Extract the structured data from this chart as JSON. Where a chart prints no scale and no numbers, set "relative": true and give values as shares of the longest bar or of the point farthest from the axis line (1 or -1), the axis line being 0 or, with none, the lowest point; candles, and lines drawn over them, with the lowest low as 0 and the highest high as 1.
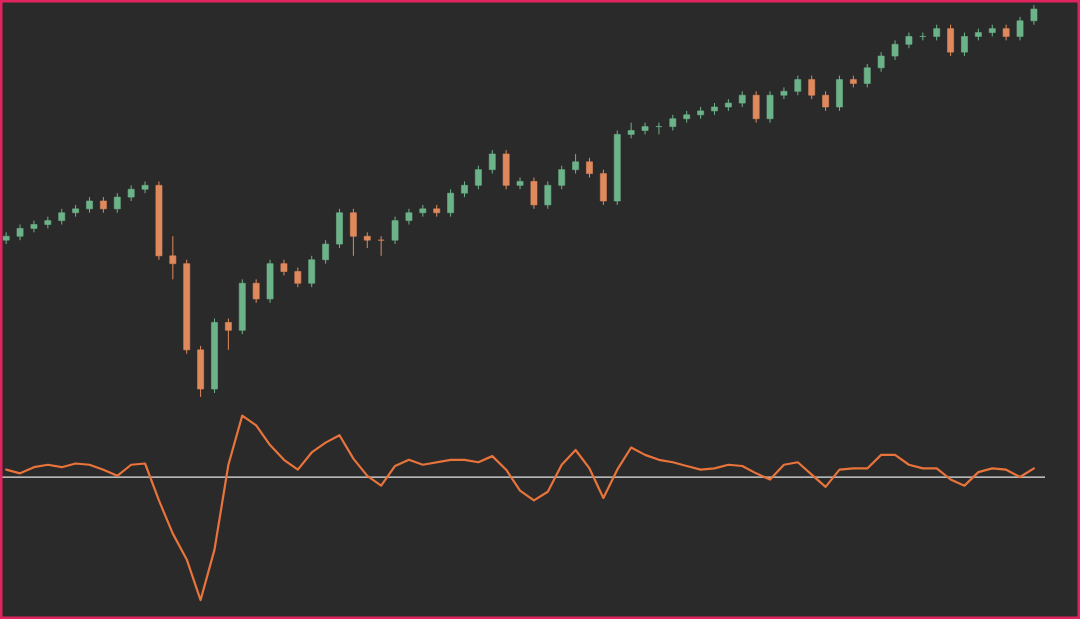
{
  "chart_data": [
    {
      "type": "candlestick",
      "relative": true,
      "categories": [
        null,
        null,
        null,
        null,
        null,
        null,
        null,
        null,
        null,
        null,
        null,
        null,
        null,
        null,
        null,
        null,
        null,
        null,
        null,
        null,
        null,
        null,
        null,
        null,
        null,
        null,
        null,
        null,
        null,
        null,
        null,
        null,
        null,
        null,
        null,
        null,
        null,
        null,
        null,
        null,
        null,
        null,
        null,
        null,
        null,
        null,
        null,
        null,
        null,
        null,
        null,
        null,
        null,
        null,
        null,
        null,
        null,
        null,
        null,
        null,
        null,
        null,
        null,
        null,
        null,
        null,
        null,
        null,
        null,
        null,
        null,
        null,
        null,
        null,
        null
      ],
      "ohlc": [
        [
          0.4,
          0.42,
          0.39,
          0.41
        ],
        [
          0.41,
          0.44,
          0.4,
          0.43
        ],
        [
          0.43,
          0.45,
          0.42,
          0.44
        ],
        [
          0.44,
          0.46,
          0.43,
          0.45
        ],
        [
          0.45,
          0.48,
          0.44,
          0.47
        ],
        [
          0.47,
          0.49,
          0.46,
          0.48
        ],
        [
          0.48,
          0.51,
          0.47,
          0.5
        ],
        [
          0.5,
          0.51,
          0.47,
          0.48
        ],
        [
          0.48,
          0.52,
          0.47,
          0.51
        ],
        [
          0.51,
          0.54,
          0.5,
          0.53
        ],
        [
          0.53,
          0.55,
          0.52,
          0.54
        ],
        [
          0.54,
          0.55,
          0.35,
          0.36
        ],
        [
          0.36,
          0.41,
          0.3,
          0.34
        ],
        [
          0.34,
          0.35,
          0.11,
          0.12
        ],
        [
          0.12,
          0.13,
          0.0,
          0.02
        ],
        [
          0.02,
          0.2,
          0.01,
          0.19
        ],
        [
          0.19,
          0.2,
          0.12,
          0.17
        ],
        [
          0.17,
          0.3,
          0.16,
          0.29
        ],
        [
          0.29,
          0.3,
          0.24,
          0.25
        ],
        [
          0.25,
          0.35,
          0.24,
          0.34
        ],
        [
          0.34,
          0.35,
          0.31,
          0.32
        ],
        [
          0.32,
          0.33,
          0.28,
          0.29
        ],
        [
          0.29,
          0.36,
          0.28,
          0.35
        ],
        [
          0.35,
          0.4,
          0.34,
          0.39
        ],
        [
          0.39,
          0.48,
          0.38,
          0.47
        ],
        [
          0.47,
          0.48,
          0.36,
          0.41
        ],
        [
          0.41,
          0.42,
          0.38,
          0.4
        ],
        [
          0.4,
          0.41,
          0.36,
          0.4
        ],
        [
          0.4,
          0.46,
          0.39,
          0.45
        ],
        [
          0.45,
          0.48,
          0.44,
          0.47
        ],
        [
          0.47,
          0.49,
          0.46,
          0.48
        ],
        [
          0.48,
          0.49,
          0.46,
          0.47
        ],
        [
          0.47,
          0.53,
          0.46,
          0.52
        ],
        [
          0.52,
          0.55,
          0.51,
          0.54
        ],
        [
          0.54,
          0.59,
          0.53,
          0.58
        ],
        [
          0.58,
          0.63,
          0.57,
          0.62
        ],
        [
          0.62,
          0.63,
          0.53,
          0.54
        ],
        [
          0.54,
          0.56,
          0.53,
          0.55
        ],
        [
          0.55,
          0.56,
          0.48,
          0.49
        ],
        [
          0.49,
          0.55,
          0.48,
          0.54
        ],
        [
          0.54,
          0.59,
          0.53,
          0.58
        ],
        [
          0.58,
          0.62,
          0.57,
          0.6
        ],
        [
          0.6,
          0.61,
          0.56,
          0.57
        ],
        [
          0.57,
          0.58,
          0.49,
          0.5
        ],
        [
          0.5,
          0.68,
          0.49,
          0.67
        ],
        [
          0.67,
          0.7,
          0.66,
          0.68
        ],
        [
          0.68,
          0.7,
          0.67,
          0.69
        ],
        [
          0.69,
          0.7,
          0.67,
          0.69
        ],
        [
          0.69,
          0.72,
          0.68,
          0.71
        ],
        [
          0.71,
          0.73,
          0.7,
          0.72
        ],
        [
          0.72,
          0.74,
          0.71,
          0.73
        ],
        [
          0.73,
          0.75,
          0.72,
          0.74
        ],
        [
          0.74,
          0.76,
          0.73,
          0.75
        ],
        [
          0.75,
          0.78,
          0.74,
          0.77
        ],
        [
          0.77,
          0.78,
          0.7,
          0.71
        ],
        [
          0.71,
          0.78,
          0.7,
          0.77
        ],
        [
          0.77,
          0.79,
          0.76,
          0.78
        ],
        [
          0.78,
          0.82,
          0.77,
          0.81
        ],
        [
          0.81,
          0.82,
          0.76,
          0.77
        ],
        [
          0.77,
          0.78,
          0.73,
          0.74
        ],
        [
          0.74,
          0.82,
          0.73,
          0.81
        ],
        [
          0.81,
          0.82,
          0.79,
          0.8
        ],
        [
          0.8,
          0.85,
          0.79,
          0.84
        ],
        [
          0.84,
          0.88,
          0.83,
          0.87
        ],
        [
          0.87,
          0.91,
          0.86,
          0.9
        ],
        [
          0.9,
          0.93,
          0.89,
          0.92
        ],
        [
          0.92,
          0.93,
          0.91,
          0.92
        ],
        [
          0.92,
          0.95,
          0.91,
          0.94
        ],
        [
          0.94,
          0.95,
          0.87,
          0.88
        ],
        [
          0.88,
          0.93,
          0.87,
          0.92
        ],
        [
          0.92,
          0.94,
          0.91,
          0.93
        ],
        [
          0.93,
          0.95,
          0.92,
          0.94
        ],
        [
          0.94,
          0.95,
          0.91,
          0.92
        ],
        [
          0.92,
          0.97,
          0.91,
          0.96
        ],
        [
          0.96,
          1.0,
          0.95,
          0.99
        ]
      ],
      "colors": [
        "#6db38a",
        "#6db38a",
        "#6db38a",
        "#6db38a",
        "#6db38a",
        "#6db38a",
        "#6db38a",
        "#e0895c",
        "#6db38a",
        "#6db38a",
        "#6db38a",
        "#e0895c",
        "#e0895c",
        "#e0895c",
        "#e0895c",
        "#6db38a",
        "#e0895c",
        "#6db38a",
        "#e0895c",
        "#6db38a",
        "#e0895c",
        "#e0895c",
        "#6db38a",
        "#6db38a",
        "#6db38a",
        "#e0895c",
        "#e0895c",
        "#e0895c",
        "#6db38a",
        "#6db38a",
        "#6db38a",
        "#e0895c",
        "#6db38a",
        "#6db38a",
        "#6db38a",
        "#6db38a",
        "#e0895c",
        "#6db38a",
        "#e0895c",
        "#6db38a",
        "#6db38a",
        "#6db38a",
        "#e0895c",
        "#e0895c",
        "#6db38a",
        "#6db38a",
        "#6db38a",
        "#6db38a",
        "#6db38a",
        "#6db38a",
        "#6db38a",
        "#6db38a",
        "#6db38a",
        "#6db38a",
        "#e0895c",
        "#6db38a",
        "#6db38a",
        "#6db38a",
        "#e0895c",
        "#e0895c",
        "#6db38a",
        "#e0895c",
        "#6db38a",
        "#6db38a",
        "#6db38a",
        "#6db38a",
        "#6db38a",
        "#6db38a",
        "#e0895c",
        "#6db38a",
        "#6db38a",
        "#6db38a",
        "#e0895c",
        "#6db38a",
        "#6db38a"
      ]
    },
    {
      "type": "line",
      "relative": true,
      "categories": [
        null,
        null,
        null,
        null,
        null,
        null,
        null,
        null,
        null,
        null,
        null,
        null,
        null,
        null,
        null,
        null,
        null,
        null,
        null,
        null,
        null,
        null,
        null,
        null,
        null,
        null,
        null,
        null,
        null,
        null,
        null,
        null,
        null,
        null,
        null,
        null,
        null,
        null,
        null,
        null,
        null,
        null,
        null,
        null,
        null,
        null,
        null,
        null,
        null,
        null,
        null,
        null,
        null,
        null,
        null,
        null,
        null,
        null,
        null,
        null,
        null,
        null,
        null,
        null,
        null,
        null,
        null,
        null,
        null,
        null,
        null,
        null,
        null,
        null,
        null
      ],
      "series": [
        {
          "color": "#e8743b",
          "values": [
            0.06,
            0.03,
            0.08,
            0.1,
            0.08,
            0.11,
            0.1,
            0.06,
            0.01,
            0.1,
            0.11,
            -0.19,
            -0.46,
            -0.67,
            -1.0,
            -0.59,
            0.1,
            0.5,
            0.42,
            0.26,
            0.14,
            0.06,
            0.2,
            0.28,
            0.34,
            0.15,
            0.01,
            -0.07,
            0.09,
            0.14,
            0.1,
            0.12,
            0.14,
            0.14,
            0.12,
            0.17,
            0.06,
            -0.11,
            -0.19,
            -0.12,
            0.1,
            0.22,
            0.07,
            -0.17,
            0.06,
            0.24,
            0.18,
            0.14,
            0.12,
            0.09,
            0.06,
            0.07,
            0.1,
            0.09,
            0.03,
            -0.02,
            0.1,
            0.12,
            0.02,
            -0.08,
            0.06,
            0.07,
            0.07,
            0.18,
            0.18,
            0.1,
            0.07,
            0.07,
            -0.02,
            -0.07,
            0.04,
            0.07,
            0.06,
            0.0,
            0.07
          ]
        }
      ]
    }
  ]
}
